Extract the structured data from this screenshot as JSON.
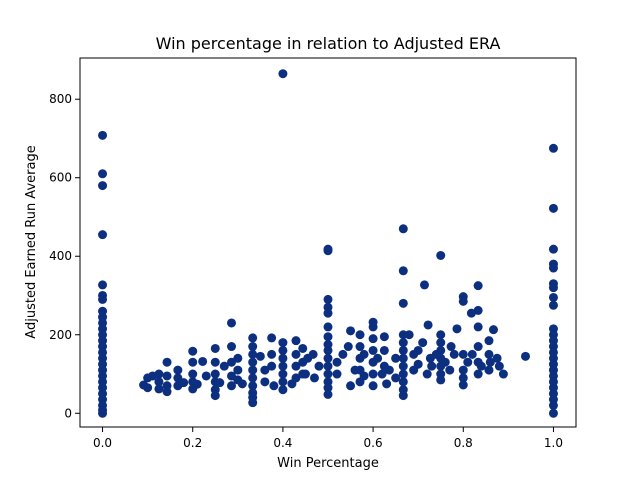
{
  "chart_data": {
    "type": "scatter",
    "title": "Win percentage in relation to Adjusted ERA",
    "xlabel": "Win Percentage",
    "ylabel": "Adjusted Earned Run Average",
    "xlim": [
      -0.05,
      1.05
    ],
    "ylim": [
      -35,
      905
    ],
    "xticks": [
      0.0,
      0.2,
      0.4,
      0.6,
      0.8,
      1.0
    ],
    "xtick_labels": [
      "0.0",
      "0.2",
      "0.4",
      "0.6",
      "0.8",
      "1.0"
    ],
    "yticks": [
      0,
      200,
      400,
      600,
      800
    ],
    "ytick_labels": [
      "0",
      "200",
      "400",
      "600",
      "800"
    ],
    "grid": false,
    "legend": "none",
    "marker_color": "#0d2f80",
    "points": [
      {
        "x": 0.0,
        "y": 708
      },
      {
        "x": 0.0,
        "y": 610
      },
      {
        "x": 0.0,
        "y": 580
      },
      {
        "x": 0.0,
        "y": 455
      },
      {
        "x": 0.0,
        "y": 327
      },
      {
        "x": 0.0,
        "y": 300
      },
      {
        "x": 0.0,
        "y": 290
      },
      {
        "x": 0.0,
        "y": 260
      },
      {
        "x": 0.0,
        "y": 245
      },
      {
        "x": 0.0,
        "y": 230
      },
      {
        "x": 0.0,
        "y": 215
      },
      {
        "x": 0.0,
        "y": 200
      },
      {
        "x": 0.0,
        "y": 185
      },
      {
        "x": 0.0,
        "y": 170
      },
      {
        "x": 0.0,
        "y": 155
      },
      {
        "x": 0.0,
        "y": 140
      },
      {
        "x": 0.0,
        "y": 125
      },
      {
        "x": 0.0,
        "y": 110
      },
      {
        "x": 0.0,
        "y": 95
      },
      {
        "x": 0.0,
        "y": 80
      },
      {
        "x": 0.0,
        "y": 65
      },
      {
        "x": 0.0,
        "y": 50
      },
      {
        "x": 0.0,
        "y": 35
      },
      {
        "x": 0.0,
        "y": 20
      },
      {
        "x": 0.0,
        "y": 8
      },
      {
        "x": 0.0,
        "y": 0
      },
      {
        "x": 1.0,
        "y": 675
      },
      {
        "x": 1.0,
        "y": 522
      },
      {
        "x": 1.0,
        "y": 418
      },
      {
        "x": 1.0,
        "y": 380
      },
      {
        "x": 1.0,
        "y": 370
      },
      {
        "x": 1.0,
        "y": 330
      },
      {
        "x": 1.0,
        "y": 320
      },
      {
        "x": 1.0,
        "y": 295
      },
      {
        "x": 1.0,
        "y": 275
      },
      {
        "x": 1.0,
        "y": 215
      },
      {
        "x": 1.0,
        "y": 200
      },
      {
        "x": 1.0,
        "y": 185
      },
      {
        "x": 1.0,
        "y": 170
      },
      {
        "x": 1.0,
        "y": 155
      },
      {
        "x": 1.0,
        "y": 140
      },
      {
        "x": 1.0,
        "y": 125
      },
      {
        "x": 1.0,
        "y": 110
      },
      {
        "x": 1.0,
        "y": 95
      },
      {
        "x": 1.0,
        "y": 80
      },
      {
        "x": 1.0,
        "y": 65
      },
      {
        "x": 1.0,
        "y": 50
      },
      {
        "x": 1.0,
        "y": 35
      },
      {
        "x": 1.0,
        "y": 20
      },
      {
        "x": 1.0,
        "y": 0
      },
      {
        "x": 0.4,
        "y": 865
      },
      {
        "x": 0.5,
        "y": 418
      },
      {
        "x": 0.5,
        "y": 414
      },
      {
        "x": 0.5,
        "y": 290
      },
      {
        "x": 0.5,
        "y": 270
      },
      {
        "x": 0.5,
        "y": 255
      },
      {
        "x": 0.5,
        "y": 220
      },
      {
        "x": 0.5,
        "y": 195
      },
      {
        "x": 0.5,
        "y": 175
      },
      {
        "x": 0.5,
        "y": 160
      },
      {
        "x": 0.5,
        "y": 140
      },
      {
        "x": 0.5,
        "y": 120
      },
      {
        "x": 0.5,
        "y": 100
      },
      {
        "x": 0.5,
        "y": 80
      },
      {
        "x": 0.5,
        "y": 65
      },
      {
        "x": 0.5,
        "y": 48
      },
      {
        "x": 0.667,
        "y": 470
      },
      {
        "x": 0.667,
        "y": 363
      },
      {
        "x": 0.667,
        "y": 280
      },
      {
        "x": 0.667,
        "y": 200
      },
      {
        "x": 0.667,
        "y": 180
      },
      {
        "x": 0.667,
        "y": 160
      },
      {
        "x": 0.667,
        "y": 140
      },
      {
        "x": 0.667,
        "y": 120
      },
      {
        "x": 0.667,
        "y": 100
      },
      {
        "x": 0.667,
        "y": 80
      },
      {
        "x": 0.667,
        "y": 60
      },
      {
        "x": 0.667,
        "y": 45
      },
      {
        "x": 0.75,
        "y": 402
      },
      {
        "x": 0.75,
        "y": 200
      },
      {
        "x": 0.75,
        "y": 180
      },
      {
        "x": 0.75,
        "y": 160
      },
      {
        "x": 0.75,
        "y": 140
      },
      {
        "x": 0.75,
        "y": 120
      },
      {
        "x": 0.75,
        "y": 100
      },
      {
        "x": 0.75,
        "y": 85
      },
      {
        "x": 0.714,
        "y": 327
      },
      {
        "x": 0.8,
        "y": 297
      },
      {
        "x": 0.8,
        "y": 285
      },
      {
        "x": 0.8,
        "y": 150
      },
      {
        "x": 0.8,
        "y": 110
      },
      {
        "x": 0.8,
        "y": 90
      },
      {
        "x": 0.8,
        "y": 72
      },
      {
        "x": 0.833,
        "y": 325
      },
      {
        "x": 0.833,
        "y": 262
      },
      {
        "x": 0.833,
        "y": 220
      },
      {
        "x": 0.833,
        "y": 170
      },
      {
        "x": 0.833,
        "y": 130
      },
      {
        "x": 0.833,
        "y": 100
      },
      {
        "x": 0.818,
        "y": 255
      },
      {
        "x": 0.857,
        "y": 185
      },
      {
        "x": 0.857,
        "y": 150
      },
      {
        "x": 0.857,
        "y": 110
      },
      {
        "x": 0.867,
        "y": 213
      },
      {
        "x": 0.875,
        "y": 140
      },
      {
        "x": 0.889,
        "y": 100
      },
      {
        "x": 0.938,
        "y": 145
      },
      {
        "x": 0.786,
        "y": 215
      },
      {
        "x": 0.7,
        "y": 160
      },
      {
        "x": 0.722,
        "y": 225
      },
      {
        "x": 0.727,
        "y": 140
      },
      {
        "x": 0.773,
        "y": 170
      },
      {
        "x": 0.333,
        "y": 192
      },
      {
        "x": 0.333,
        "y": 170
      },
      {
        "x": 0.333,
        "y": 150
      },
      {
        "x": 0.333,
        "y": 130
      },
      {
        "x": 0.333,
        "y": 110
      },
      {
        "x": 0.333,
        "y": 90
      },
      {
        "x": 0.333,
        "y": 70
      },
      {
        "x": 0.333,
        "y": 52
      },
      {
        "x": 0.333,
        "y": 40
      },
      {
        "x": 0.333,
        "y": 27
      },
      {
        "x": 0.25,
        "y": 165
      },
      {
        "x": 0.25,
        "y": 130
      },
      {
        "x": 0.25,
        "y": 100
      },
      {
        "x": 0.25,
        "y": 80
      },
      {
        "x": 0.25,
        "y": 60
      },
      {
        "x": 0.25,
        "y": 45
      },
      {
        "x": 0.286,
        "y": 230
      },
      {
        "x": 0.286,
        "y": 170
      },
      {
        "x": 0.286,
        "y": 130
      },
      {
        "x": 0.286,
        "y": 95
      },
      {
        "x": 0.286,
        "y": 70
      },
      {
        "x": 0.2,
        "y": 158
      },
      {
        "x": 0.2,
        "y": 130
      },
      {
        "x": 0.2,
        "y": 100
      },
      {
        "x": 0.2,
        "y": 80
      },
      {
        "x": 0.2,
        "y": 62
      },
      {
        "x": 0.222,
        "y": 132
      },
      {
        "x": 0.167,
        "y": 110
      },
      {
        "x": 0.167,
        "y": 90
      },
      {
        "x": 0.167,
        "y": 70
      },
      {
        "x": 0.143,
        "y": 130
      },
      {
        "x": 0.143,
        "y": 95
      },
      {
        "x": 0.143,
        "y": 70
      },
      {
        "x": 0.143,
        "y": 55
      },
      {
        "x": 0.125,
        "y": 100
      },
      {
        "x": 0.125,
        "y": 80
      },
      {
        "x": 0.125,
        "y": 62
      },
      {
        "x": 0.111,
        "y": 95
      },
      {
        "x": 0.1,
        "y": 90
      },
      {
        "x": 0.1,
        "y": 65
      },
      {
        "x": 0.091,
        "y": 72
      },
      {
        "x": 0.375,
        "y": 192
      },
      {
        "x": 0.375,
        "y": 150
      },
      {
        "x": 0.375,
        "y": 120
      },
      {
        "x": 0.4,
        "y": 180
      },
      {
        "x": 0.4,
        "y": 160
      },
      {
        "x": 0.4,
        "y": 140
      },
      {
        "x": 0.4,
        "y": 120
      },
      {
        "x": 0.4,
        "y": 100
      },
      {
        "x": 0.4,
        "y": 80
      },
      {
        "x": 0.4,
        "y": 60
      },
      {
        "x": 0.429,
        "y": 185
      },
      {
        "x": 0.429,
        "y": 150
      },
      {
        "x": 0.429,
        "y": 120
      },
      {
        "x": 0.429,
        "y": 90
      },
      {
        "x": 0.444,
        "y": 165
      },
      {
        "x": 0.444,
        "y": 130
      },
      {
        "x": 0.444,
        "y": 100
      },
      {
        "x": 0.455,
        "y": 140
      },
      {
        "x": 0.467,
        "y": 150
      },
      {
        "x": 0.3,
        "y": 140
      },
      {
        "x": 0.3,
        "y": 110
      },
      {
        "x": 0.3,
        "y": 85
      },
      {
        "x": 0.35,
        "y": 145
      },
      {
        "x": 0.36,
        "y": 110
      },
      {
        "x": 0.27,
        "y": 120
      },
      {
        "x": 0.23,
        "y": 95
      },
      {
        "x": 0.55,
        "y": 210
      },
      {
        "x": 0.571,
        "y": 200
      },
      {
        "x": 0.571,
        "y": 170
      },
      {
        "x": 0.571,
        "y": 140
      },
      {
        "x": 0.571,
        "y": 110
      },
      {
        "x": 0.571,
        "y": 80
      },
      {
        "x": 0.6,
        "y": 232
      },
      {
        "x": 0.6,
        "y": 220
      },
      {
        "x": 0.6,
        "y": 190
      },
      {
        "x": 0.6,
        "y": 160
      },
      {
        "x": 0.6,
        "y": 130
      },
      {
        "x": 0.6,
        "y": 100
      },
      {
        "x": 0.6,
        "y": 70
      },
      {
        "x": 0.625,
        "y": 195
      },
      {
        "x": 0.625,
        "y": 160
      },
      {
        "x": 0.625,
        "y": 120
      },
      {
        "x": 0.636,
        "y": 110
      },
      {
        "x": 0.65,
        "y": 140
      },
      {
        "x": 0.545,
        "y": 170
      },
      {
        "x": 0.533,
        "y": 150
      },
      {
        "x": 0.52,
        "y": 130
      },
      {
        "x": 0.58,
        "y": 150
      },
      {
        "x": 0.61,
        "y": 140
      },
      {
        "x": 0.69,
        "y": 150
      },
      {
        "x": 0.68,
        "y": 200
      },
      {
        "x": 0.71,
        "y": 180
      },
      {
        "x": 0.74,
        "y": 150
      },
      {
        "x": 0.76,
        "y": 130
      },
      {
        "x": 0.78,
        "y": 150
      },
      {
        "x": 0.69,
        "y": 110
      },
      {
        "x": 0.72,
        "y": 100
      },
      {
        "x": 0.65,
        "y": 90
      },
      {
        "x": 0.63,
        "y": 75
      },
      {
        "x": 0.58,
        "y": 95
      },
      {
        "x": 0.55,
        "y": 70
      },
      {
        "x": 0.48,
        "y": 120
      },
      {
        "x": 0.47,
        "y": 90
      },
      {
        "x": 0.42,
        "y": 75
      },
      {
        "x": 0.38,
        "y": 70
      },
      {
        "x": 0.36,
        "y": 80
      },
      {
        "x": 0.31,
        "y": 75
      },
      {
        "x": 0.26,
        "y": 78
      },
      {
        "x": 0.21,
        "y": 74
      },
      {
        "x": 0.18,
        "y": 78
      },
      {
        "x": 0.45,
        "y": 100
      },
      {
        "x": 0.52,
        "y": 100
      },
      {
        "x": 0.56,
        "y": 110
      },
      {
        "x": 0.62,
        "y": 100
      },
      {
        "x": 0.7,
        "y": 125
      },
      {
        "x": 0.73,
        "y": 120
      },
      {
        "x": 0.77,
        "y": 110
      },
      {
        "x": 0.82,
        "y": 150
      },
      {
        "x": 0.84,
        "y": 120
      },
      {
        "x": 0.86,
        "y": 130
      },
      {
        "x": 0.88,
        "y": 120
      },
      {
        "x": 0.81,
        "y": 130
      }
    ]
  }
}
